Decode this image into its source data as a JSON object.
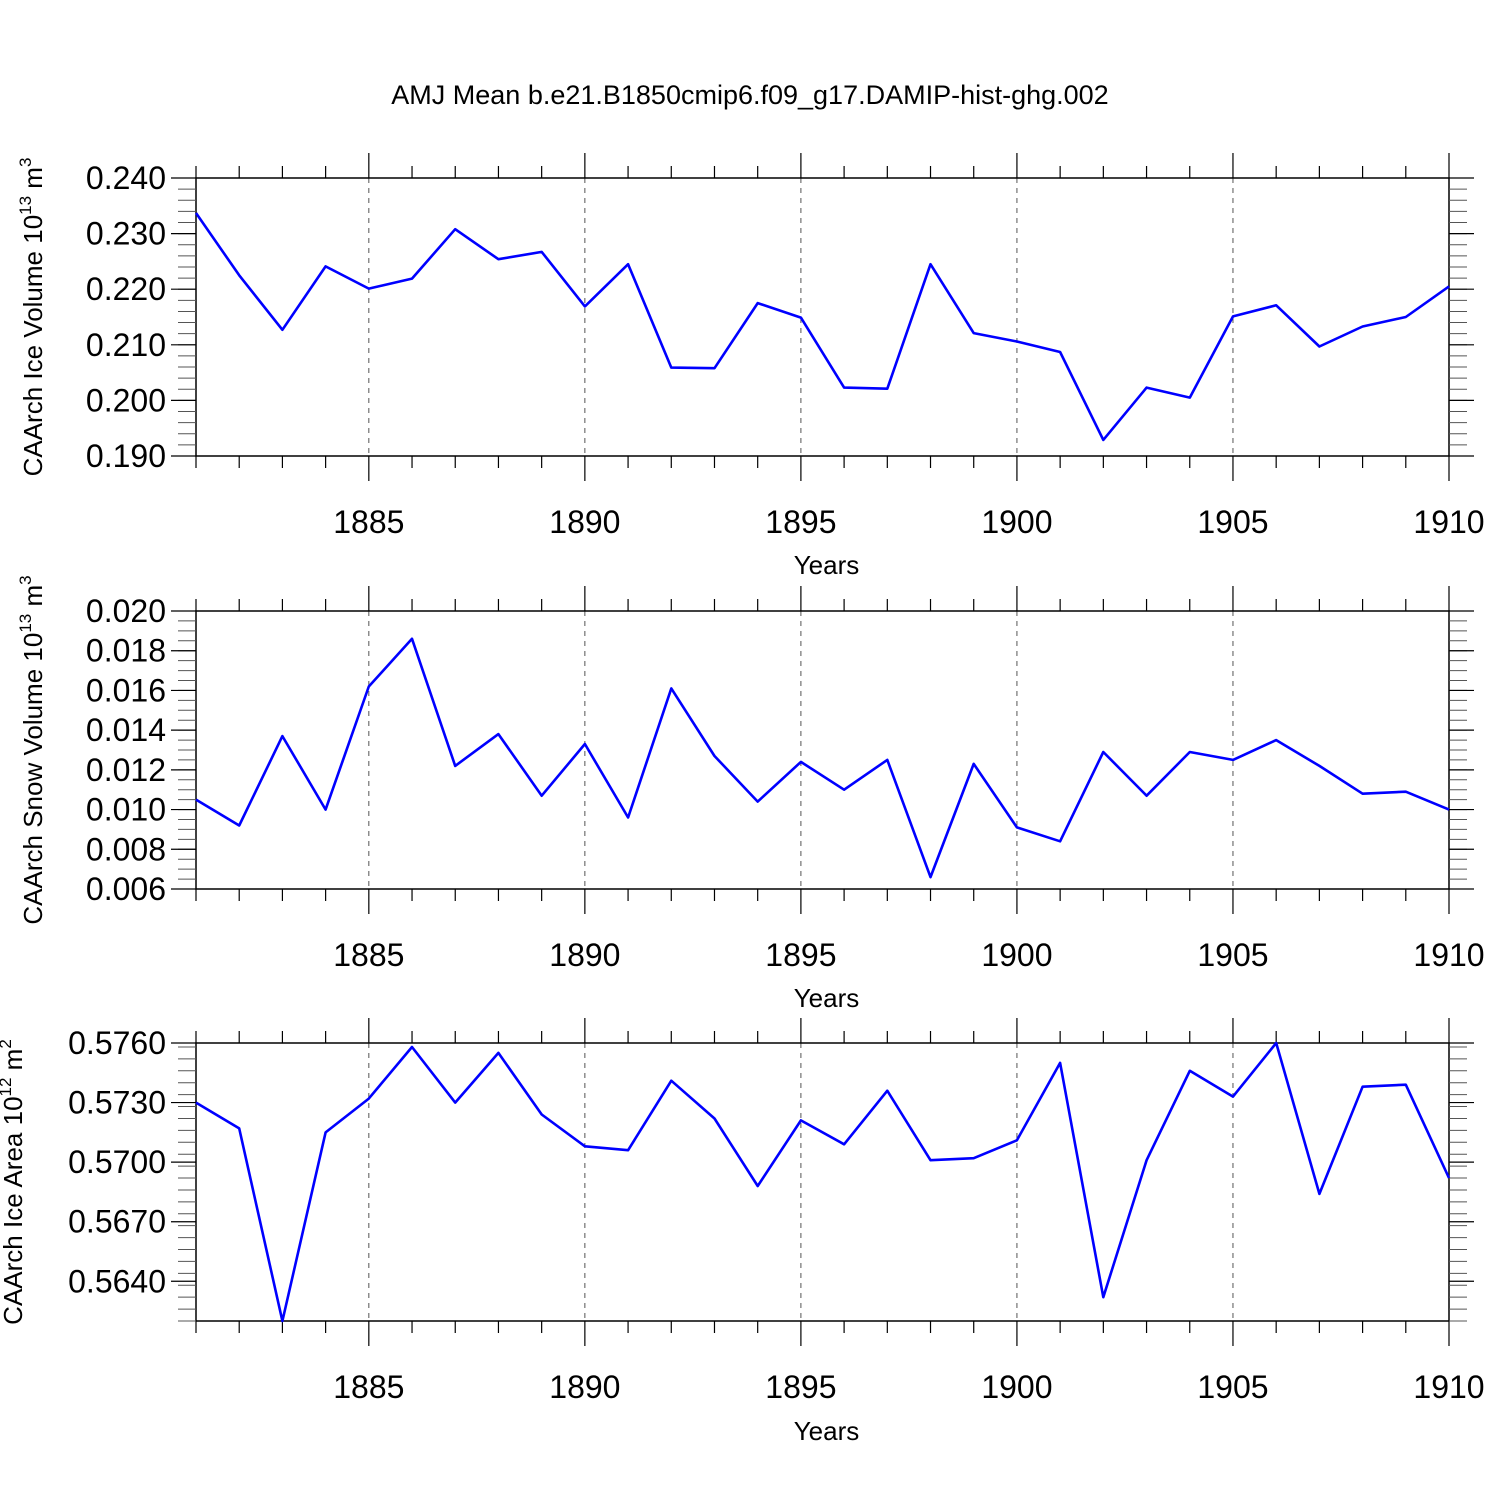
{
  "figure": {
    "title": "AMJ Mean b.e21.B1850cmip6.f09_g17.DAMIP-hist-ghg.002",
    "line_color": "#0000ff",
    "axis_color": "#000000",
    "grid_style": "dashed vertical lines at major x ticks"
  },
  "chart_data": [
    {
      "type": "line",
      "title": "AMJ Mean b.e21.B1850cmip6.f09_g17.DAMIP-hist-ghg.002",
      "xlabel": "Years",
      "ylabel": "CAArch Ice Volume 10",
      "ylabel_exp": "13",
      "ylabel_unit": " m",
      "ylabel_unit_exp": "3",
      "xlim": [
        1881,
        1910
      ],
      "ylim": [
        0.19,
        0.24
      ],
      "xticks": [
        1885,
        1890,
        1895,
        1900,
        1905,
        1910
      ],
      "yticks": [
        "0.190",
        "0.200",
        "0.210",
        "0.220",
        "0.230",
        "0.240"
      ],
      "ytick_values": [
        0.19,
        0.2,
        0.21,
        0.22,
        0.23,
        0.24
      ],
      "yminor_step": 0.002,
      "x": [
        1881,
        1882,
        1883,
        1884,
        1885,
        1886,
        1887,
        1888,
        1889,
        1890,
        1891,
        1892,
        1893,
        1894,
        1895,
        1896,
        1897,
        1898,
        1899,
        1900,
        1901,
        1902,
        1903,
        1904,
        1905,
        1906,
        1907,
        1908,
        1909,
        1910
      ],
      "y": [
        0.2337,
        0.2225,
        0.2127,
        0.2241,
        0.2201,
        0.2219,
        0.2308,
        0.2254,
        0.2267,
        0.2169,
        0.2245,
        0.2059,
        0.2058,
        0.2175,
        0.2149,
        0.2023,
        0.2021,
        0.2245,
        0.2121,
        0.2106,
        0.2087,
        0.1929,
        0.2023,
        0.2005,
        0.2151,
        0.2171,
        0.2097,
        0.2133,
        0.215,
        0.2205
      ],
      "grid": true
    },
    {
      "type": "line",
      "xlabel": "Years",
      "ylabel": "CAArch Snow Volume 10",
      "ylabel_exp": "13",
      "ylabel_unit": " m",
      "ylabel_unit_exp": "3",
      "xlim": [
        1881,
        1910
      ],
      "ylim": [
        0.006,
        0.02
      ],
      "xticks": [
        1885,
        1890,
        1895,
        1900,
        1905,
        1910
      ],
      "yticks": [
        "0.006",
        "0.008",
        "0.010",
        "0.012",
        "0.014",
        "0.016",
        "0.018",
        "0.020"
      ],
      "ytick_values": [
        0.006,
        0.008,
        0.01,
        0.012,
        0.014,
        0.016,
        0.018,
        0.02
      ],
      "yminor_step": 0.0005,
      "x": [
        1881,
        1882,
        1883,
        1884,
        1885,
        1886,
        1887,
        1888,
        1889,
        1890,
        1891,
        1892,
        1893,
        1894,
        1895,
        1896,
        1897,
        1898,
        1899,
        1900,
        1901,
        1902,
        1903,
        1904,
        1905,
        1906,
        1907,
        1908,
        1909,
        1910
      ],
      "y": [
        0.0105,
        0.0092,
        0.0137,
        0.01,
        0.0162,
        0.0186,
        0.0122,
        0.0138,
        0.0107,
        0.0133,
        0.0096,
        0.0161,
        0.0127,
        0.0104,
        0.0124,
        0.011,
        0.0125,
        0.0066,
        0.0123,
        0.0091,
        0.0084,
        0.0129,
        0.0107,
        0.0129,
        0.0125,
        0.0135,
        0.0122,
        0.0108,
        0.0109,
        0.01
      ],
      "grid": true
    },
    {
      "type": "line",
      "xlabel": "Years",
      "ylabel": "CAArch Ice Area 10",
      "ylabel_exp": "12",
      "ylabel_unit": " m",
      "ylabel_unit_exp": "2",
      "xlim": [
        1881,
        1910
      ],
      "ylim": [
        0.562,
        0.576
      ],
      "xticks": [
        1885,
        1890,
        1895,
        1900,
        1905,
        1910
      ],
      "yticks": [
        "0.5640",
        "0.5670",
        "0.5700",
        "0.5730",
        "0.5760"
      ],
      "ytick_values": [
        0.564,
        0.567,
        0.57,
        0.573,
        0.576
      ],
      "yminor_step": 0.0006,
      "x": [
        1881,
        1882,
        1883,
        1884,
        1885,
        1886,
        1887,
        1888,
        1889,
        1890,
        1891,
        1892,
        1893,
        1894,
        1895,
        1896,
        1897,
        1898,
        1899,
        1900,
        1901,
        1902,
        1903,
        1904,
        1905,
        1906,
        1907,
        1908,
        1909,
        1910
      ],
      "y": [
        0.573,
        0.5717,
        0.562,
        0.5715,
        0.5732,
        0.5758,
        0.573,
        0.5755,
        0.5724,
        0.5708,
        0.5706,
        0.5741,
        0.5722,
        0.5688,
        0.5721,
        0.5709,
        0.5736,
        0.5701,
        0.5702,
        0.5711,
        0.575,
        0.5632,
        0.5701,
        0.5746,
        0.5733,
        0.576,
        0.5684,
        0.5738,
        0.5739,
        0.5692
      ],
      "grid": true
    }
  ]
}
